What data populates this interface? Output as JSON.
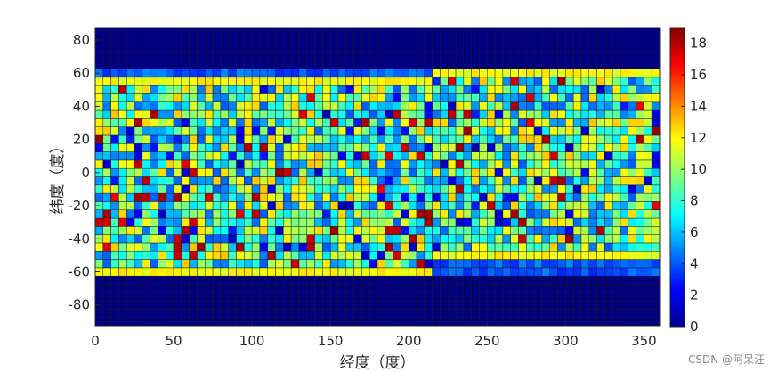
{
  "chart_data": {
    "type": "heatmap",
    "xlabel": "经度（度）",
    "ylabel": "纬度（度）",
    "xlim": [
      0,
      355
    ],
    "ylim": [
      -90,
      85
    ],
    "cell_size_deg": 5,
    "xticks": [
      "0",
      "50",
      "100",
      "150",
      "200",
      "250",
      "300",
      "350"
    ],
    "yticks": [
      "80",
      "60",
      "40",
      "20",
      "0",
      "-20",
      "-40",
      "-60",
      "-80"
    ],
    "colorbar": {
      "min": 0,
      "max": 19,
      "ticks": [
        "0",
        "2",
        "4",
        "6",
        "8",
        "10",
        "12",
        "14",
        "16",
        "18"
      ],
      "colormap": "jet"
    },
    "value_summary": {
      "polar_caps": 0,
      "band_edges": 11,
      "low_bands": 3,
      "typical_range": [
        4,
        13
      ],
      "hot_spots": 17
    }
  },
  "watermark": "CSDN @阿呆汪"
}
